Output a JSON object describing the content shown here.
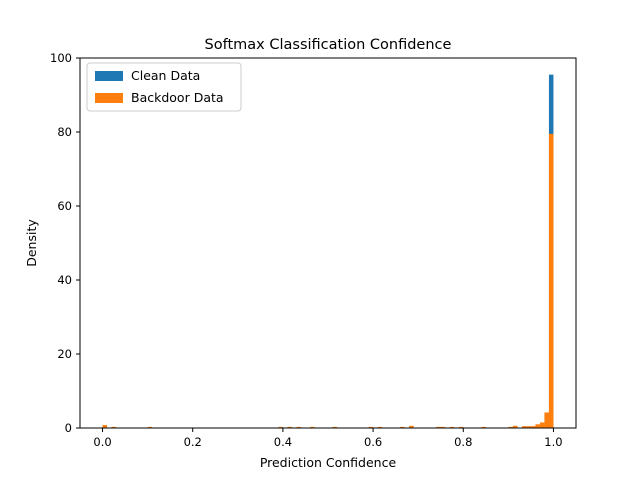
{
  "chart_data": {
    "type": "bar",
    "subtype": "histogram",
    "title": "Softmax Classification Confidence",
    "xlabel": "Prediction Confidence",
    "ylabel": "Density",
    "xlim": [
      -0.05,
      1.05
    ],
    "ylim": [
      0,
      100
    ],
    "xticks": [
      "0.0",
      "0.2",
      "0.4",
      "0.6",
      "0.8",
      "1.0"
    ],
    "yticks": [
      "0",
      "20",
      "40",
      "60",
      "80",
      "100"
    ],
    "grid": false,
    "legend_position": "top-left",
    "bin_width": 0.01,
    "series": [
      {
        "name": "Clean Data",
        "color": "#1f77b4",
        "bins": [
          {
            "x0": 0.98,
            "x1": 0.99,
            "density": 3.5
          },
          {
            "x0": 0.99,
            "x1": 1.0,
            "density": 95.5
          }
        ]
      },
      {
        "name": "Backdoor Data",
        "color": "#ff7f0e",
        "bins": [
          {
            "x0": 0.0,
            "x1": 0.01,
            "density": 0.8
          },
          {
            "x0": 0.02,
            "x1": 0.03,
            "density": 0.3
          },
          {
            "x0": 0.1,
            "x1": 0.11,
            "density": 0.3
          },
          {
            "x0": 0.39,
            "x1": 0.4,
            "density": 0.3
          },
          {
            "x0": 0.41,
            "x1": 0.42,
            "density": 0.3
          },
          {
            "x0": 0.43,
            "x1": 0.44,
            "density": 0.3
          },
          {
            "x0": 0.46,
            "x1": 0.47,
            "density": 0.3
          },
          {
            "x0": 0.51,
            "x1": 0.52,
            "density": 0.3
          },
          {
            "x0": 0.59,
            "x1": 0.6,
            "density": 0.3
          },
          {
            "x0": 0.61,
            "x1": 0.62,
            "density": 0.3
          },
          {
            "x0": 0.66,
            "x1": 0.67,
            "density": 0.3
          },
          {
            "x0": 0.68,
            "x1": 0.69,
            "density": 0.6
          },
          {
            "x0": 0.74,
            "x1": 0.75,
            "density": 0.3
          },
          {
            "x0": 0.75,
            "x1": 0.76,
            "density": 0.3
          },
          {
            "x0": 0.77,
            "x1": 0.78,
            "density": 0.3
          },
          {
            "x0": 0.79,
            "x1": 0.8,
            "density": 0.3
          },
          {
            "x0": 0.84,
            "x1": 0.85,
            "density": 0.3
          },
          {
            "x0": 0.9,
            "x1": 0.91,
            "density": 0.3
          },
          {
            "x0": 0.91,
            "x1": 0.92,
            "density": 0.6
          },
          {
            "x0": 0.93,
            "x1": 0.94,
            "density": 0.5
          },
          {
            "x0": 0.94,
            "x1": 0.95,
            "density": 0.5
          },
          {
            "x0": 0.95,
            "x1": 0.96,
            "density": 0.5
          },
          {
            "x0": 0.96,
            "x1": 0.97,
            "density": 1.0
          },
          {
            "x0": 0.97,
            "x1": 0.98,
            "density": 1.5
          },
          {
            "x0": 0.98,
            "x1": 0.99,
            "density": 4.2
          },
          {
            "x0": 0.99,
            "x1": 1.0,
            "density": 79.5
          }
        ]
      }
    ]
  }
}
